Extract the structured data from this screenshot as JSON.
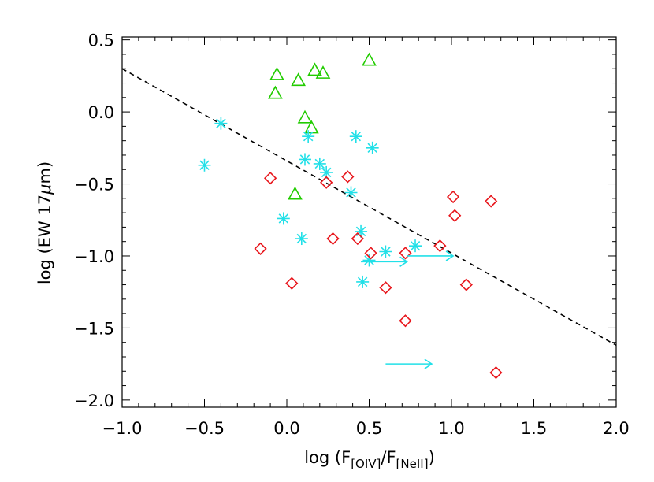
{
  "chart_data": {
    "type": "scatter",
    "title": "",
    "xlabel": {
      "prefix": "log (F",
      "sub1": "[OIV]",
      "mid": "/F",
      "sub2": "[NeII]",
      "suffix": ")"
    },
    "ylabel": {
      "prefix": "log (EW 17",
      "mu": "μ",
      "suffix": "m)"
    },
    "xlim": [
      -1.0,
      2.0
    ],
    "ylim": [
      -2.05,
      0.52
    ],
    "xticks": [
      -1.0,
      -0.5,
      0.0,
      0.5,
      1.0,
      1.5,
      2.0
    ],
    "xtick_labels": [
      "−1.0",
      "−0.5",
      "0.0",
      "0.5",
      "1.0",
      "1.5",
      "2.0"
    ],
    "yticks": [
      -2.0,
      -1.5,
      -1.0,
      -0.5,
      0.0,
      0.5
    ],
    "ytick_labels": [
      "−2.0",
      "−1.5",
      "−1.0",
      "−0.5",
      "0.0",
      "0.5"
    ],
    "colors": {
      "triangle": "#22cc00",
      "star": "#22e0e8",
      "diamond": "#e8161c",
      "arrow": "#22e0e8",
      "fit": "#000000"
    },
    "series": [
      {
        "name": "triangles",
        "marker": "triangle",
        "points": [
          [
            -0.06,
            0.26
          ],
          [
            -0.07,
            0.13
          ],
          [
            0.07,
            0.22
          ],
          [
            0.17,
            0.29
          ],
          [
            0.22,
            0.27
          ],
          [
            0.5,
            0.36
          ],
          [
            0.11,
            -0.04
          ],
          [
            0.15,
            -0.11
          ],
          [
            0.05,
            -0.57
          ]
        ]
      },
      {
        "name": "asterisks",
        "marker": "star",
        "points": [
          [
            -0.4,
            -0.08
          ],
          [
            -0.5,
            -0.37
          ],
          [
            0.13,
            -0.17
          ],
          [
            0.42,
            -0.17
          ],
          [
            0.52,
            -0.25
          ],
          [
            0.11,
            -0.33
          ],
          [
            0.2,
            -0.36
          ],
          [
            0.24,
            -0.42
          ],
          [
            0.39,
            -0.56
          ],
          [
            -0.02,
            -0.74
          ],
          [
            0.09,
            -0.88
          ],
          [
            0.45,
            -0.83
          ],
          [
            0.6,
            -0.97
          ],
          [
            0.78,
            -0.93
          ],
          [
            0.5,
            -1.03
          ],
          [
            0.46,
            -1.18
          ]
        ]
      },
      {
        "name": "diamonds",
        "marker": "diamond",
        "points": [
          [
            -0.1,
            -0.46
          ],
          [
            0.24,
            -0.49
          ],
          [
            0.37,
            -0.45
          ],
          [
            -0.16,
            -0.95
          ],
          [
            0.03,
            -1.19
          ],
          [
            0.28,
            -0.88
          ],
          [
            0.43,
            -0.88
          ],
          [
            0.51,
            -0.98
          ],
          [
            0.6,
            -1.22
          ],
          [
            0.72,
            -0.98
          ],
          [
            0.93,
            -0.93
          ],
          [
            0.72,
            -1.45
          ],
          [
            1.01,
            -0.59
          ],
          [
            1.02,
            -0.72
          ],
          [
            1.09,
            -1.2
          ],
          [
            1.24,
            -0.62
          ],
          [
            1.27,
            -1.81
          ]
        ]
      },
      {
        "name": "lower limits",
        "marker": "arrow",
        "points": [
          [
            0.45,
            -1.04
          ],
          [
            0.73,
            -1.0
          ],
          [
            0.6,
            -1.75
          ]
        ],
        "arrow_length": 0.28
      }
    ],
    "fit_line": {
      "style": "dashed",
      "x": [
        -1.0,
        2.0
      ],
      "y": [
        0.3,
        -1.62
      ]
    }
  }
}
